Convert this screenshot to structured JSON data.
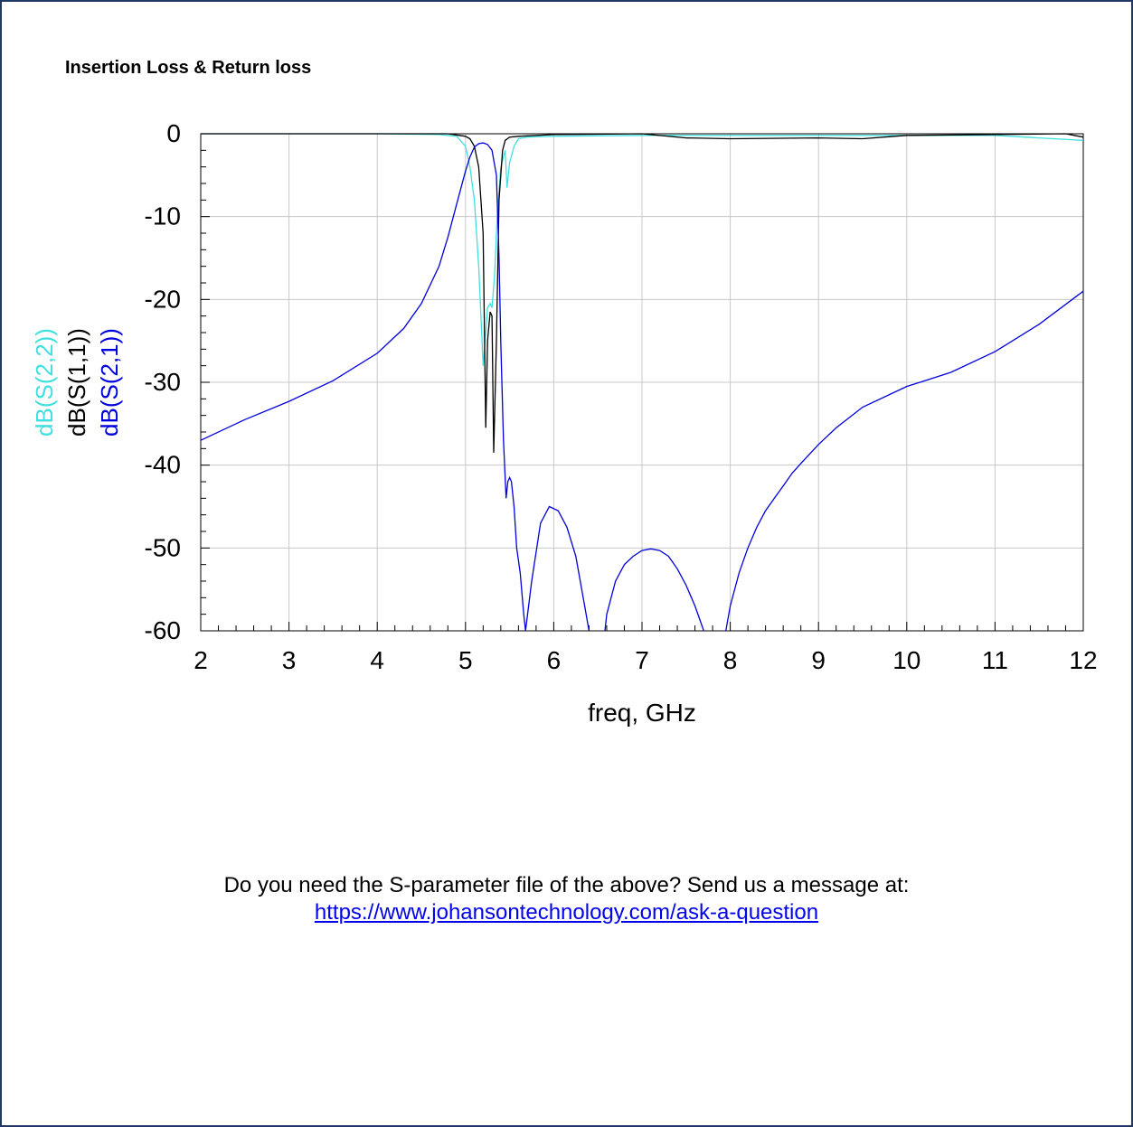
{
  "page": {
    "title": "Insertion Loss & Return loss",
    "footer_text": "Do you need the S-parameter file of the above?  Send us a message at:",
    "footer_link": "https://www.johansontechnology.com/ask-a-question"
  },
  "chart_data": {
    "type": "line",
    "title": "",
    "xlabel": "freq, GHz",
    "ylabel": "",
    "xlim": [
      2,
      12
    ],
    "ylim": [
      -60,
      0
    ],
    "xticks": [
      2,
      3,
      4,
      5,
      6,
      7,
      8,
      9,
      10,
      11,
      12
    ],
    "yticks": [
      0,
      -10,
      -20,
      -30,
      -40,
      -50,
      -60
    ],
    "grid": true,
    "legend_position": "left-vertical",
    "series": [
      {
        "name": "dB(S(2,2))",
        "color": "#40e0e0",
        "x": [
          2,
          3,
          4,
          4.7,
          4.9,
          5.0,
          5.05,
          5.1,
          5.15,
          5.2,
          5.23,
          5.25,
          5.28,
          5.3,
          5.33,
          5.36,
          5.4,
          5.45,
          5.47,
          5.5,
          5.55,
          5.6,
          5.7,
          6,
          7,
          8,
          9,
          10,
          11,
          11.5,
          12
        ],
        "y": [
          0,
          0,
          0,
          -0.1,
          -0.3,
          -1.5,
          -4,
          -8,
          -16,
          -28,
          -24,
          -21,
          -20.5,
          -21,
          -17,
          -10,
          -4,
          -2,
          -6.5,
          -3.5,
          -1.5,
          -0.6,
          -0.4,
          -0.3,
          -0.2,
          -0.2,
          -0.2,
          -0.2,
          -0.2,
          -0.5,
          -0.8
        ]
      },
      {
        "name": "dB(S(1,1))",
        "color": "#000000",
        "x": [
          2,
          3,
          4,
          4.8,
          5.0,
          5.05,
          5.1,
          5.15,
          5.2,
          5.23,
          5.25,
          5.28,
          5.3,
          5.32,
          5.35,
          5.38,
          5.42,
          5.45,
          5.5,
          5.6,
          6,
          7,
          7.5,
          8,
          9,
          9.5,
          10,
          11,
          11.8,
          12
        ],
        "y": [
          0,
          0,
          0,
          0,
          -0.3,
          -0.6,
          -1.5,
          -4,
          -12,
          -35.5,
          -25,
          -21.5,
          -22,
          -38.5,
          -25,
          -8,
          -2,
          -0.8,
          -0.4,
          -0.3,
          -0.1,
          0,
          -0.5,
          -0.6,
          -0.5,
          -0.6,
          -0.2,
          -0.1,
          0,
          -0.4
        ]
      },
      {
        "name": "dB(S(2,1))",
        "color": "#0000dd",
        "x": [
          2,
          2.5,
          3,
          3.5,
          4,
          4.3,
          4.5,
          4.7,
          4.8,
          4.9,
          5.0,
          5.05,
          5.1,
          5.15,
          5.2,
          5.25,
          5.3,
          5.35,
          5.38,
          5.4,
          5.43,
          5.46,
          5.48,
          5.5,
          5.52,
          5.55,
          5.58,
          5.62,
          5.66,
          5.68,
          5.75,
          5.85,
          5.95,
          6.05,
          6.15,
          6.25,
          6.35,
          6.4
        ],
        "y": [
          -37,
          -34.5,
          -32.3,
          -29.8,
          -26.5,
          -23.5,
          -20.5,
          -16,
          -12.5,
          -8.5,
          -4.5,
          -2.8,
          -1.6,
          -1.2,
          -1.1,
          -1.3,
          -2,
          -5,
          -15,
          -25,
          -37,
          -44,
          -42,
          -41.5,
          -42,
          -45,
          -50,
          -53,
          -58,
          -60,
          -54,
          -47,
          -45,
          -45.5,
          -47.5,
          -51,
          -57,
          -60
        ],
        "x2": [
          6.58,
          6.6,
          6.7,
          6.8,
          6.9,
          7.0,
          7.1,
          7.2,
          7.3,
          7.4,
          7.5,
          7.6,
          7.7
        ],
        "y2": [
          -60,
          -58,
          -54,
          -52,
          -51,
          -50.3,
          -50.1,
          -50.3,
          -51,
          -52.5,
          -54.5,
          -57,
          -60
        ],
        "x3": [
          7.95,
          8.0,
          8.1,
          8.2,
          8.3,
          8.4,
          8.5,
          8.6,
          8.7,
          8.8,
          9.0,
          9.2,
          9.5,
          10,
          10.5,
          11,
          11.5,
          12
        ],
        "y3": [
          -60,
          -57,
          -53,
          -50,
          -47.5,
          -45.5,
          -44,
          -42.5,
          -41,
          -39.8,
          -37.5,
          -35.5,
          -33,
          -30.5,
          -28.8,
          -26.3,
          -23,
          -19
        ]
      }
    ]
  }
}
